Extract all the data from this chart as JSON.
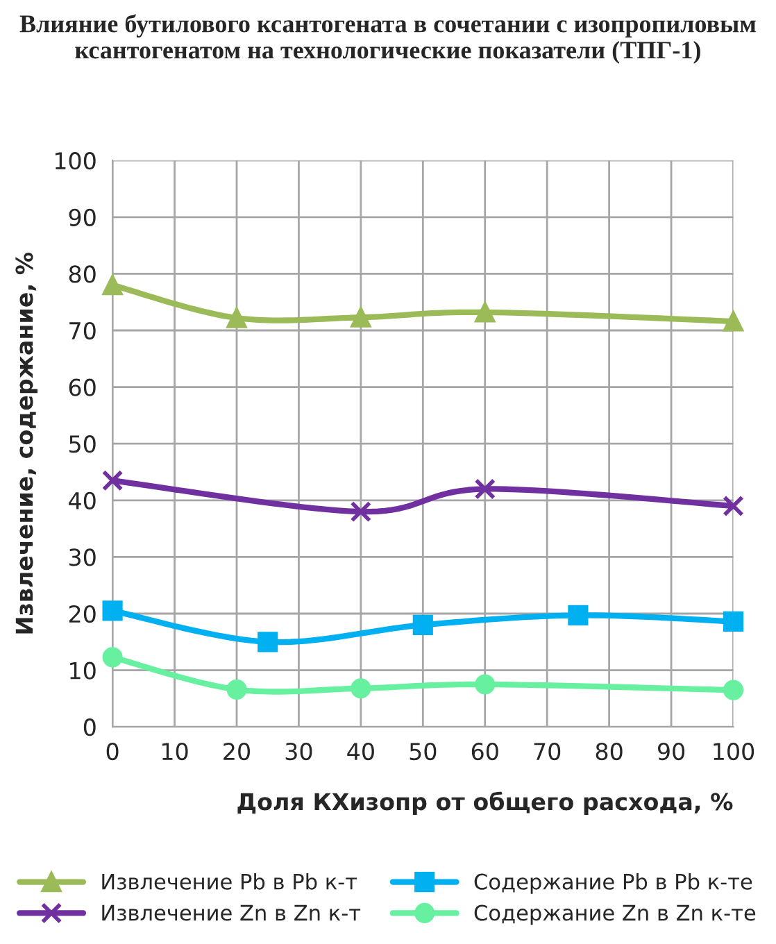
{
  "chart_data": {
    "type": "line",
    "title": "Влияние бутилового ксантогената в сочетании с изопропиловым ксантогенатом на технологические показатели (ТПГ-1)",
    "xlabel": "Доля КХизопр от общего расхода, %",
    "ylabel": "Извлечение, содержание, %",
    "xlim": [
      0,
      100
    ],
    "xticks": [
      0,
      10,
      20,
      30,
      40,
      50,
      60,
      70,
      80,
      90,
      100
    ],
    "ylim": [
      0,
      100
    ],
    "yticks": [
      0,
      10,
      20,
      30,
      40,
      50,
      60,
      70,
      80,
      90,
      100
    ],
    "grid": true,
    "legend": "bottom",
    "series": [
      {
        "name": "Извлечение Pb в Pb к-т",
        "color": "#9bbb59",
        "marker": "triangle",
        "x": [
          0,
          20,
          40,
          60,
          100
        ],
        "values": [
          78,
          72.2,
          72.3,
          73.2,
          71.6
        ]
      },
      {
        "name": "Извлечение Zn в Zn к-т",
        "color": "#7030a0",
        "marker": "cross",
        "x": [
          0,
          40,
          60,
          100
        ],
        "values": [
          43.5,
          38,
          42,
          39
        ]
      },
      {
        "name": "Содержание Pb в Pb к-те",
        "color": "#00b0f0",
        "marker": "square",
        "x": [
          0,
          25,
          50,
          75,
          100
        ],
        "values": [
          20.5,
          15,
          18,
          19.7,
          18.6
        ]
      },
      {
        "name": "Содержание Zn в Zn к-те",
        "color": "#66f0a0",
        "marker": "circle",
        "x": [
          0,
          20,
          40,
          60,
          100
        ],
        "values": [
          12.3,
          6.6,
          6.8,
          7.5,
          6.5
        ]
      }
    ]
  }
}
